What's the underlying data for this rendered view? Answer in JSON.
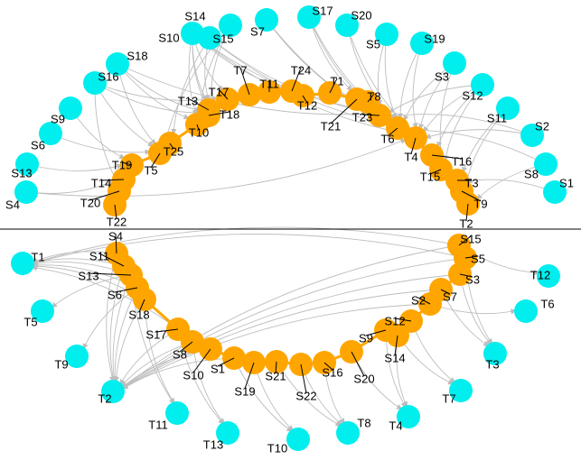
{
  "colors": {
    "inner_node": "#FFA500",
    "outer_node": "#00EEEE",
    "edge": "#BDBDBD",
    "label": "#000000",
    "divider": "#000000"
  },
  "top_panel": {
    "inner_ring_labels": [
      "T1",
      "T2",
      "T3",
      "T4",
      "T5",
      "T6",
      "T7",
      "T8",
      "T9",
      "T10",
      "T11",
      "T12",
      "T13",
      "T14",
      "T15",
      "T16",
      "T17",
      "T18",
      "T19",
      "T20",
      "T21",
      "T22",
      "T23",
      "T24",
      "T25"
    ],
    "outer_labels": [
      "S1",
      "S2",
      "S3",
      "S4",
      "S5",
      "S6",
      "S7",
      "S8",
      "S9",
      "S10",
      "S11",
      "S12",
      "S13",
      "S14",
      "S15",
      "S16",
      "S17",
      "S18",
      "S19",
      "S20"
    ]
  },
  "bottom_panel": {
    "inner_ring_labels": [
      "S1",
      "S2",
      "S3",
      "S4",
      "S5",
      "S6",
      "S7",
      "S8",
      "S9",
      "S10",
      "S11",
      "S12",
      "S13",
      "S14",
      "S15",
      "S16",
      "S17",
      "S18",
      "S19",
      "S20",
      "S21",
      "S22"
    ],
    "outer_labels": [
      "T1",
      "T2",
      "T3",
      "T4",
      "T5",
      "T6",
      "T7",
      "T8",
      "T9",
      "T10",
      "T11",
      "T12",
      "T13"
    ]
  }
}
